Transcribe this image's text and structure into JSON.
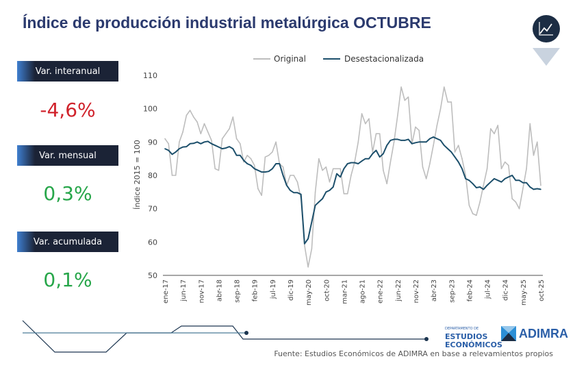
{
  "title": "Índice de producción industrial metalúrgica OCTUBRE",
  "kpis": [
    {
      "label": "Var. interanual",
      "value": "-4,6%",
      "color": "#d0222b"
    },
    {
      "label": "Var. mensual",
      "value": "0,3%",
      "color": "#27a64a"
    },
    {
      "label": "Var. acumulada",
      "value": "0,1%",
      "color": "#27a64a"
    }
  ],
  "icons": {
    "badge": "line-chart-icon"
  },
  "logos": {
    "dept_small": "DEPARTAMENTO DE",
    "dept_line1": "ESTUDIOS",
    "dept_line2": "ECONÓMICOS",
    "adimra": "ADIMRA"
  },
  "source": "Fuente: Estudios Económicos de ADIMRA en base a relevamientos propios",
  "chart_data": {
    "type": "line",
    "title": "",
    "xlabel": "",
    "ylabel": "Índice 2015 = 100",
    "ylim": [
      50,
      110
    ],
    "yticks": [
      50,
      60,
      70,
      80,
      90,
      100,
      110
    ],
    "grid": false,
    "legend": "top",
    "x_start": "ene-17",
    "x_end": "oct-25",
    "xtick_labels": [
      "ene-17",
      "jun-17",
      "nov-17",
      "abr-18",
      "sep-18",
      "feb-19",
      "jul-19",
      "dic-19",
      "may-20",
      "oct-20",
      "mar-21",
      "ago-21",
      "ene-22",
      "jun-22",
      "nov-22",
      "abr-23",
      "sep-23",
      "feb-24",
      "jul-24",
      "dic-24",
      "may-25",
      "oct-25"
    ],
    "series": [
      {
        "name": "Original",
        "color": "#bdbdbd",
        "values": [
          91,
          89.5,
          80,
          80,
          90,
          93,
          98,
          99.5,
          97.5,
          96,
          92.5,
          95.5,
          93,
          90.5,
          82,
          81.5,
          91,
          92.5,
          94,
          97.5,
          91,
          89.5,
          84,
          86,
          85,
          83,
          76,
          74,
          85.5,
          86,
          87,
          90,
          83.5,
          82.5,
          77,
          80,
          80,
          78,
          73,
          59,
          52.5,
          58,
          75,
          85,
          81.5,
          82.5,
          78,
          82,
          82,
          82,
          74.5,
          74.5,
          80,
          84,
          90,
          98.5,
          95.5,
          97,
          87,
          92.5,
          92.5,
          81.5,
          77.5,
          84,
          90,
          98,
          106.5,
          102.5,
          103.5,
          89.5,
          94.5,
          93.5,
          82.5,
          79,
          83.5,
          89,
          95,
          100,
          106.5,
          102,
          102,
          87,
          89,
          85,
          80,
          71,
          68.5,
          68,
          72,
          77,
          82,
          94,
          92.5,
          95,
          82,
          84,
          83,
          73,
          72,
          70,
          76,
          82,
          95.5,
          86,
          90,
          77
        ]
      },
      {
        "name": "Desestacionalizada",
        "color": "#1c4f6b",
        "values": [
          88,
          87.5,
          86.3,
          87,
          88,
          88.5,
          88.6,
          89.5,
          89.6,
          90,
          89.5,
          90,
          90.2,
          89.5,
          89,
          88.5,
          88,
          88.2,
          88.6,
          88,
          86,
          86,
          84.5,
          83.5,
          83,
          82,
          81.5,
          81,
          81,
          81.2,
          82,
          83.5,
          83.5,
          80,
          77,
          75.5,
          74.8,
          74.8,
          74.3,
          59.5,
          61,
          66,
          71,
          72,
          73,
          75,
          75.5,
          76.5,
          80.5,
          79.5,
          82,
          83.5,
          83.8,
          83.8,
          83.5,
          84.3,
          85,
          85,
          86.5,
          87.5,
          85.5,
          86.5,
          89,
          90.5,
          90.8,
          90.8,
          90.5,
          90.5,
          90.8,
          89.5,
          89.8,
          90,
          90,
          90,
          91,
          91.5,
          91,
          90.5,
          89,
          88,
          87,
          85.5,
          84,
          82,
          79,
          78.5,
          77.5,
          76.3,
          76.5,
          75.8,
          77,
          78,
          79,
          78.5,
          78,
          79,
          79.5,
          80,
          78.5,
          78.5,
          77.8,
          77.8,
          76.5,
          75.8,
          76,
          75.8
        ]
      }
    ]
  }
}
